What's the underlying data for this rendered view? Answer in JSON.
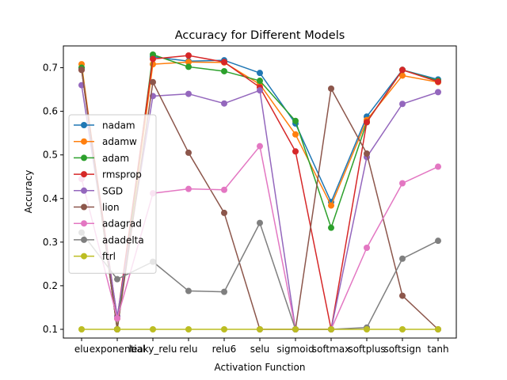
{
  "chart_data": {
    "type": "line",
    "title": "Accuracy for Different Models",
    "xlabel": "Activation Function",
    "ylabel": "Accuracy",
    "categories": [
      "elu",
      "exponential",
      "leaky_relu",
      "relu",
      "relu6",
      "selu",
      "sigmoid",
      "softmax",
      "softplus",
      "softsign",
      "tanh"
    ],
    "ylim": [
      0.08,
      0.75
    ],
    "yticks": [
      0.1,
      0.2,
      0.3,
      0.4,
      0.5,
      0.6,
      0.7
    ],
    "ytick_labels": [
      "0.1",
      "0.2",
      "0.3",
      "0.4",
      "0.5",
      "0.6",
      "0.7"
    ],
    "grid": false,
    "legend_position": "center-left",
    "series": [
      {
        "name": "nadam",
        "color": "#1f77b4",
        "values": [
          0.7,
          0.1,
          0.725,
          0.715,
          0.717,
          0.688,
          0.572,
          0.392,
          0.588,
          0.695,
          0.673
        ]
      },
      {
        "name": "adamw",
        "color": "#ff7f0e",
        "values": [
          0.708,
          0.1,
          0.708,
          0.713,
          0.712,
          0.662,
          0.547,
          0.384,
          0.58,
          0.682,
          0.667
        ]
      },
      {
        "name": "adam",
        "color": "#2ca02c",
        "values": [
          0.7,
          0.1,
          0.73,
          0.702,
          0.692,
          0.67,
          0.578,
          0.333,
          0.575,
          0.695,
          0.67
        ]
      },
      {
        "name": "rmsprop",
        "color": "#d62728",
        "values": [
          0.695,
          0.125,
          0.72,
          0.728,
          0.713,
          0.655,
          0.508,
          0.1,
          0.575,
          0.695,
          0.668
        ]
      },
      {
        "name": "SGD",
        "color": "#9467bd",
        "values": [
          0.66,
          0.13,
          0.635,
          0.64,
          0.618,
          0.648,
          0.1,
          0.1,
          0.495,
          0.617,
          0.644
        ]
      },
      {
        "name": "lion",
        "color": "#8c564b",
        "values": [
          0.695,
          0.1,
          0.667,
          0.505,
          0.367,
          0.1,
          0.1,
          0.652,
          0.503,
          0.177,
          0.1
        ]
      },
      {
        "name": "adagrad",
        "color": "#e377c2",
        "values": [
          0.445,
          0.125,
          0.412,
          0.422,
          0.42,
          0.52,
          0.1,
          0.1,
          0.287,
          0.435,
          0.473
        ]
      },
      {
        "name": "adadelta",
        "color": "#7f7f7f",
        "values": [
          0.322,
          0.215,
          0.255,
          0.188,
          0.186,
          0.344,
          0.1,
          0.1,
          0.104,
          0.262,
          0.303
        ]
      },
      {
        "name": "ftrl",
        "color": "#bcbd22",
        "values": [
          0.1,
          0.1,
          0.1,
          0.1,
          0.1,
          0.1,
          0.1,
          0.1,
          0.1,
          0.1,
          0.1
        ]
      }
    ]
  }
}
